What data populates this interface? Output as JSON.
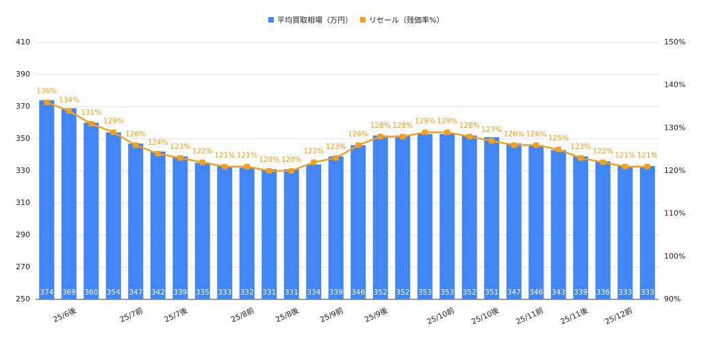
{
  "chart_data": {
    "type": "bar-line",
    "categories": [
      null,
      "25/6後",
      null,
      null,
      "25/7前",
      null,
      "25/7後",
      null,
      null,
      "25/8前",
      null,
      "25/8後",
      null,
      "25/9前",
      null,
      "25/9後",
      null,
      null,
      "25/10前",
      null,
      "25/10後",
      null,
      "25/11前",
      null,
      "25/11後",
      null,
      "25/12前",
      null
    ],
    "series": [
      {
        "name": "平均買取相場（万円）",
        "color": "#4285f4",
        "type": "bar",
        "values": [
          374,
          369,
          360,
          354,
          347,
          342,
          339,
          335,
          333,
          332,
          331,
          331,
          334,
          339,
          346,
          352,
          352,
          353,
          353,
          352,
          351,
          347,
          346,
          343,
          339,
          336,
          333,
          333
        ]
      },
      {
        "name": "リセール（残価率%）",
        "color": "#f4a01b",
        "type": "line",
        "axis": "y2",
        "values": [
          136,
          134,
          131,
          129,
          126,
          124,
          123,
          122,
          121,
          121,
          120,
          120,
          122,
          123,
          126,
          128,
          128,
          129,
          129,
          128,
          127,
          126,
          126,
          125,
          123,
          122,
          121,
          121
        ],
        "value_labels": [
          "136%",
          "134%",
          "131%",
          "129%",
          "126%",
          "124%",
          "123%",
          "122%",
          "121%",
          "121%",
          "120%",
          "120%",
          "122%",
          "123%",
          "126%",
          "128%",
          "128%",
          "129%",
          "129%",
          "128%",
          "127%",
          "126%",
          "126%",
          "125%",
          "123%",
          "122%",
          "121%",
          "121%"
        ]
      }
    ],
    "ylim": [
      250,
      410
    ],
    "yticks": [
      250,
      270,
      290,
      310,
      330,
      350,
      370,
      390,
      410
    ],
    "y2lim": [
      90,
      150
    ],
    "y2ticks": [
      {
        "value": 90,
        "label": "90%"
      },
      {
        "value": 100,
        "label": "100%"
      },
      {
        "value": 110,
        "label": "110%"
      },
      {
        "value": 120,
        "label": "120%"
      },
      {
        "value": 130,
        "label": "130%"
      },
      {
        "value": 140,
        "label": "140%"
      },
      {
        "value": 150,
        "label": "150%"
      }
    ],
    "grid": true,
    "legend": "top"
  }
}
